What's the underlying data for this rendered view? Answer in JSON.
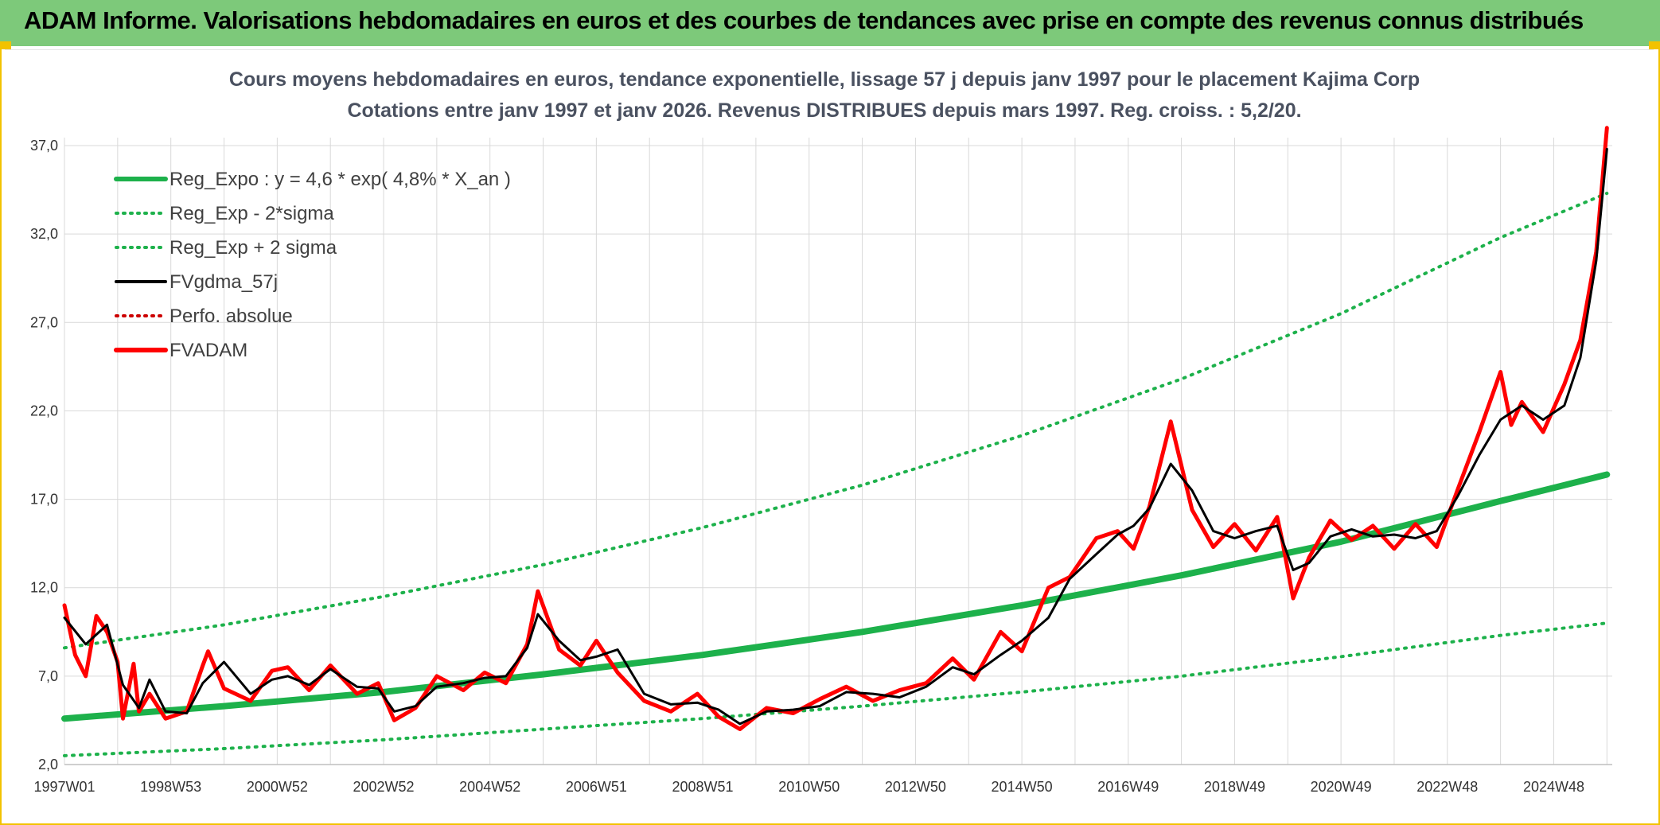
{
  "header": {
    "title": "ADAM Informe. Valorisations hebdomadaires en euros et des courbes de tendances avec prise en compte des revenus connus distribués"
  },
  "colors": {
    "header_bg": "#7dc97a",
    "frame": "#f2c200",
    "reg_green": "#1db14b",
    "fvadam_red": "#ff0000",
    "fvgdma_black": "#000000",
    "perfo_red": "#cc0000",
    "grid": "#d9d9d9"
  },
  "chart_data": {
    "type": "line",
    "title": "Cours moyens hebdomadaires en euros, tendance exponentielle, lissage 57 j depuis janv 1997 pour le placement Kajima Corp",
    "subtitle": "Cotations entre janv 1997 et janv 2026. Revenus DISTRIBUES depuis mars 1997. Reg. croiss. : 5,2/20.",
    "ylim": [
      2.0,
      37.0
    ],
    "yticks": [
      "2,0",
      "7,0",
      "12,0",
      "17,0",
      "22,0",
      "27,0",
      "32,0",
      "37,0"
    ],
    "ytick_values": [
      2,
      7,
      12,
      17,
      22,
      27,
      32,
      37
    ],
    "xlim": [
      1997.0,
      2026.1
    ],
    "xticks": [
      "1997W01",
      "1998W53",
      "2000W52",
      "2002W52",
      "2004W52",
      "2006W51",
      "2008W51",
      "2010W50",
      "2012W50",
      "2014W50",
      "2016W49",
      "2018W49",
      "2020W49",
      "2022W48",
      "2024W48"
    ],
    "xtick_values": [
      1997.0,
      1999.0,
      2001.0,
      2003.0,
      2005.0,
      2007.0,
      2009.0,
      2011.0,
      2013.0,
      2015.0,
      2017.0,
      2019.0,
      2021.0,
      2023.0,
      2025.0
    ],
    "legend": {
      "placement": "top-left",
      "entries": [
        {
          "label": "Reg_Expo : y = 4,6 * exp( 4,8% *  X_an )",
          "color": "#1db14b",
          "style": "solid-thick"
        },
        {
          "label": "Reg_Exp - 2*sigma",
          "color": "#1db14b",
          "style": "dotted"
        },
        {
          "label": "Reg_Exp + 2 sigma",
          "color": "#1db14b",
          "style": "dotted"
        },
        {
          "label": "FVgdma_57j",
          "color": "#000000",
          "style": "solid"
        },
        {
          "label": "Perfo. absolue",
          "color": "#cc0000",
          "style": "dotted"
        },
        {
          "label": "FVADAM",
          "color": "#ff0000",
          "style": "solid-thick"
        }
      ]
    },
    "series": [
      {
        "name": "Reg_Expo : y = 4,6 * exp( 4,8% *  X_an )",
        "x": [
          1997.0,
          2000.0,
          2003.0,
          2006.0,
          2009.0,
          2012.0,
          2015.0,
          2018.0,
          2021.0,
          2024.0,
          2026.0
        ],
        "y": [
          4.6,
          5.3,
          6.1,
          7.1,
          8.2,
          9.5,
          11.0,
          12.7,
          14.6,
          16.9,
          18.4
        ]
      },
      {
        "name": "Reg_Exp - 2*sigma",
        "x": [
          1997.0,
          2000.0,
          2003.0,
          2006.0,
          2009.0,
          2012.0,
          2015.0,
          2018.0,
          2021.0,
          2024.0,
          2026.0
        ],
        "y": [
          2.5,
          2.9,
          3.4,
          4.0,
          4.6,
          5.3,
          6.1,
          7.0,
          8.1,
          9.3,
          10.0
        ]
      },
      {
        "name": "Reg_Exp + 2 sigma",
        "x": [
          1997.0,
          2000.0,
          2003.0,
          2006.0,
          2009.0,
          2012.0,
          2015.0,
          2018.0,
          2021.0,
          2024.0,
          2026.0
        ],
        "y": [
          8.6,
          9.9,
          11.5,
          13.3,
          15.4,
          17.8,
          20.6,
          23.8,
          27.5,
          31.8,
          34.3
        ]
      },
      {
        "name": "FVgdma_57j",
        "x": [
          1997.0,
          1997.4,
          1997.8,
          1998.1,
          1998.4,
          1998.6,
          1998.9,
          1999.3,
          1999.6,
          2000.0,
          2000.5,
          2000.9,
          2001.2,
          2001.6,
          2002.0,
          2002.5,
          2002.9,
          2003.2,
          2003.6,
          2004.0,
          2004.5,
          2004.9,
          2005.3,
          2005.7,
          2005.9,
          2006.3,
          2006.7,
          2007.0,
          2007.4,
          2007.9,
          2008.4,
          2008.9,
          2009.3,
          2009.7,
          2010.2,
          2010.7,
          2011.2,
          2011.7,
          2012.2,
          2012.7,
          2013.2,
          2013.7,
          2014.1,
          2014.6,
          2015.0,
          2015.5,
          2015.9,
          2016.4,
          2016.8,
          2017.1,
          2017.4,
          2017.8,
          2018.2,
          2018.6,
          2019.0,
          2019.4,
          2019.8,
          2020.1,
          2020.4,
          2020.8,
          2021.2,
          2021.6,
          2022.0,
          2022.4,
          2022.8,
          2023.2,
          2023.6,
          2024.0,
          2024.4,
          2024.8,
          2025.2,
          2025.5,
          2025.8,
          2026.0
        ],
        "y": [
          10.3,
          8.8,
          9.9,
          6.5,
          5.2,
          6.8,
          5.0,
          4.9,
          6.6,
          7.8,
          6.0,
          6.8,
          7.0,
          6.5,
          7.4,
          6.4,
          6.3,
          5.0,
          5.3,
          6.4,
          6.6,
          6.9,
          7.0,
          8.6,
          10.5,
          9.0,
          7.9,
          8.1,
          8.5,
          6.0,
          5.4,
          5.5,
          5.1,
          4.3,
          5.0,
          5.1,
          5.3,
          6.1,
          6.0,
          5.8,
          6.4,
          7.5,
          7.1,
          8.2,
          9.0,
          10.3,
          12.5,
          13.9,
          15.0,
          15.5,
          16.5,
          19.0,
          17.5,
          15.2,
          14.8,
          15.2,
          15.5,
          13.0,
          13.4,
          14.9,
          15.3,
          14.9,
          15.0,
          14.8,
          15.2,
          17.2,
          19.5,
          21.5,
          22.3,
          21.5,
          22.3,
          25.0,
          30.5,
          36.8
        ]
      },
      {
        "name": "FVADAM",
        "x": [
          1997.0,
          1997.2,
          1997.4,
          1997.6,
          1997.8,
          1998.0,
          1998.1,
          1998.3,
          1998.4,
          1998.6,
          1998.9,
          1999.3,
          1999.6,
          1999.7,
          2000.0,
          2000.5,
          2000.9,
          2001.2,
          2001.6,
          2002.0,
          2002.5,
          2002.9,
          2003.2,
          2003.6,
          2004.0,
          2004.5,
          2004.9,
          2005.3,
          2005.7,
          2005.9,
          2006.3,
          2006.7,
          2007.0,
          2007.4,
          2007.9,
          2008.4,
          2008.9,
          2009.3,
          2009.7,
          2010.2,
          2010.7,
          2011.2,
          2011.7,
          2012.2,
          2012.7,
          2013.2,
          2013.7,
          2014.1,
          2014.6,
          2015.0,
          2015.5,
          2015.9,
          2016.4,
          2016.8,
          2017.1,
          2017.4,
          2017.8,
          2018.2,
          2018.6,
          2019.0,
          2019.4,
          2019.8,
          2019.9,
          2020.1,
          2020.4,
          2020.8,
          2021.2,
          2021.6,
          2022.0,
          2022.4,
          2022.8,
          2023.2,
          2023.6,
          2024.0,
          2024.2,
          2024.4,
          2024.8,
          2025.2,
          2025.5,
          2025.8,
          2026.0
        ],
        "y": [
          11.0,
          8.2,
          7.0,
          10.4,
          9.5,
          7.8,
          4.6,
          7.7,
          5.0,
          6.0,
          4.6,
          5.0,
          7.6,
          8.4,
          6.3,
          5.6,
          7.3,
          7.5,
          6.2,
          7.6,
          6.0,
          6.6,
          4.5,
          5.2,
          7.0,
          6.2,
          7.2,
          6.6,
          8.8,
          11.8,
          8.5,
          7.6,
          9.0,
          7.2,
          5.6,
          5.0,
          6.0,
          4.7,
          4.0,
          5.2,
          4.9,
          5.7,
          6.4,
          5.6,
          6.2,
          6.6,
          8.0,
          6.8,
          9.5,
          8.4,
          12.0,
          12.6,
          14.8,
          15.2,
          14.2,
          16.6,
          21.4,
          16.4,
          14.3,
          15.6,
          14.1,
          16.0,
          14.6,
          11.4,
          13.7,
          15.8,
          14.7,
          15.5,
          14.2,
          15.6,
          14.3,
          17.6,
          20.8,
          24.2,
          21.2,
          22.5,
          20.8,
          23.5,
          26.0,
          31.0,
          38.0
        ]
      }
    ]
  }
}
